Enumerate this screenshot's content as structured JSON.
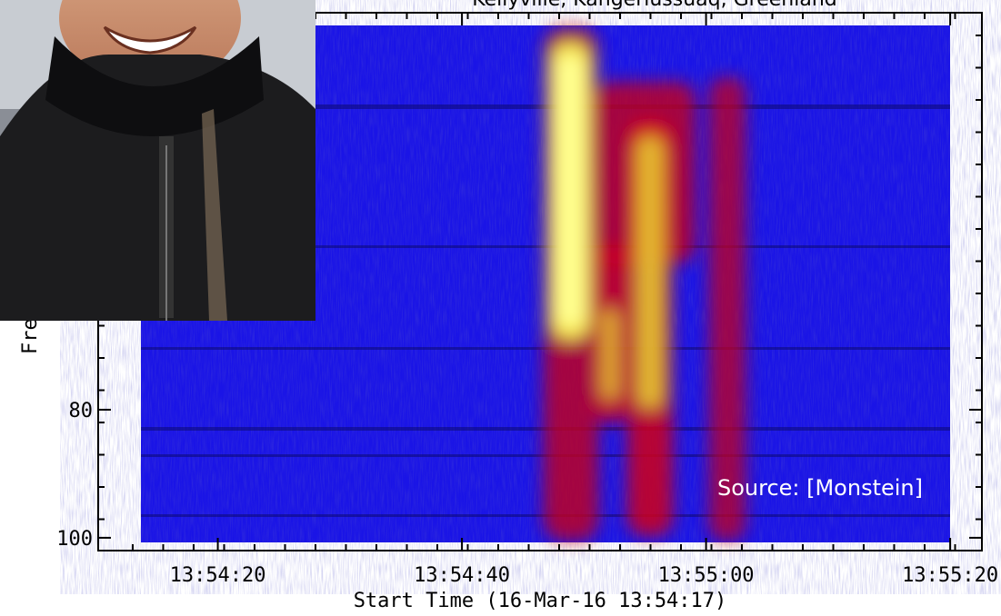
{
  "chart_data": {
    "type": "spectrogram",
    "title": "Kellyville, Kangerlussuaq, Greenland",
    "xlabel": "Start Time (16-Mar-16 13:54:17)",
    "ylabel": "Frequ",
    "annotation": "Source: [Monstein]",
    "xlim": [
      -6.8,
      65.6
    ],
    "xticks": [
      {
        "value": 3,
        "label": "13:54:20"
      },
      {
        "value": 23,
        "label": "13:54:40"
      },
      {
        "value": 43,
        "label": "13:55:00"
      },
      {
        "value": 63,
        "label": "13:55:20"
      }
    ],
    "ylim": [
      102,
      18
    ],
    "yticks": [
      80,
      100
    ]
  }
}
